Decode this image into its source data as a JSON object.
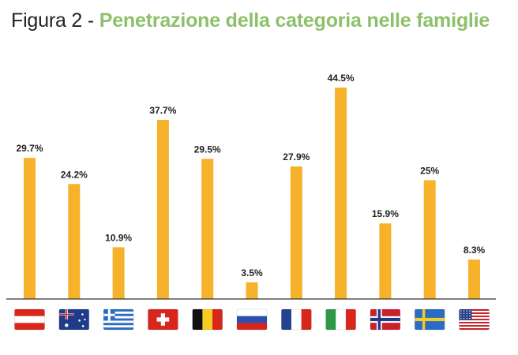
{
  "title": {
    "prefix": "Figura 2 - ",
    "main": "Penetrazione della categoria nelle famiglie"
  },
  "colors": {
    "bar": "#f5b22a",
    "title_accent": "#8dc06a",
    "axis": "#333333"
  },
  "chart_data": {
    "type": "bar",
    "title": "Penetrazione della categoria nelle famiglie",
    "categories": [
      "austria-flag",
      "australia-flag",
      "greece-flag",
      "switzerland-flag",
      "belgium-flag",
      "russia-flag",
      "france-flag",
      "italy-flag",
      "norway-flag",
      "sweden-flag",
      "usa-flag"
    ],
    "values": [
      29.7,
      24.2,
      10.9,
      37.7,
      29.5,
      3.5,
      27.9,
      44.5,
      15.9,
      25,
      8.3
    ],
    "value_labels": [
      "29.7%",
      "24.2%",
      "10.9%",
      "37.7%",
      "29.5%",
      "3.5%",
      "27.9%",
      "44.5%",
      "15.9%",
      "25%",
      "8.3%"
    ],
    "ylim": [
      0,
      50
    ],
    "grid": false,
    "legend": "none"
  }
}
